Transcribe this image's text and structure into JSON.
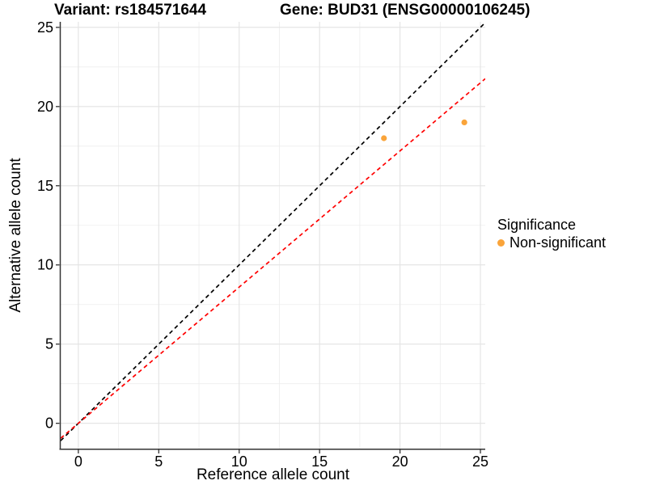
{
  "titles": {
    "variant": "Variant: rs184571644",
    "gene": "Gene: BUD31 (ENSG00000106245)"
  },
  "chart_data": {
    "type": "scatter",
    "title": "Variant: rs184571644   Gene: BUD31 (ENSG00000106245)",
    "xlabel": "Reference allele count",
    "ylabel": "Alternative allele count",
    "xlim": [
      -1.1,
      25.3
    ],
    "ylim": [
      -1.6,
      25.35
    ],
    "x_ticks": [
      0,
      5,
      10,
      15,
      20,
      25
    ],
    "y_ticks": [
      0,
      5,
      10,
      15,
      20,
      25
    ],
    "x_minor": [
      2.5,
      7.5,
      12.5,
      17.5,
      22.5
    ],
    "y_minor": [
      2.5,
      7.5,
      12.5,
      17.5,
      22.5
    ],
    "grid": true,
    "series": [
      {
        "name": "Non-significant",
        "color": "#FAA43A",
        "points": [
          [
            19,
            18
          ],
          [
            24,
            19
          ]
        ]
      }
    ],
    "lines": [
      {
        "name": "identity",
        "slope": 1.0,
        "intercept": 0,
        "color": "#000000",
        "style": "dashed"
      },
      {
        "name": "allelic-ratio",
        "slope": 0.86,
        "intercept": 0,
        "color": "#FF0000",
        "style": "dashed"
      }
    ],
    "legend": {
      "position": "right",
      "title": "Significance",
      "entries": [
        {
          "label": "Non-significant",
          "color": "#FAA43A"
        }
      ]
    },
    "colors": {
      "grid_major": "#E3E3E3",
      "grid_minor": "#EDEDED",
      "axis": "#333333",
      "tick": "#333333",
      "point": "#FAA43A"
    }
  }
}
